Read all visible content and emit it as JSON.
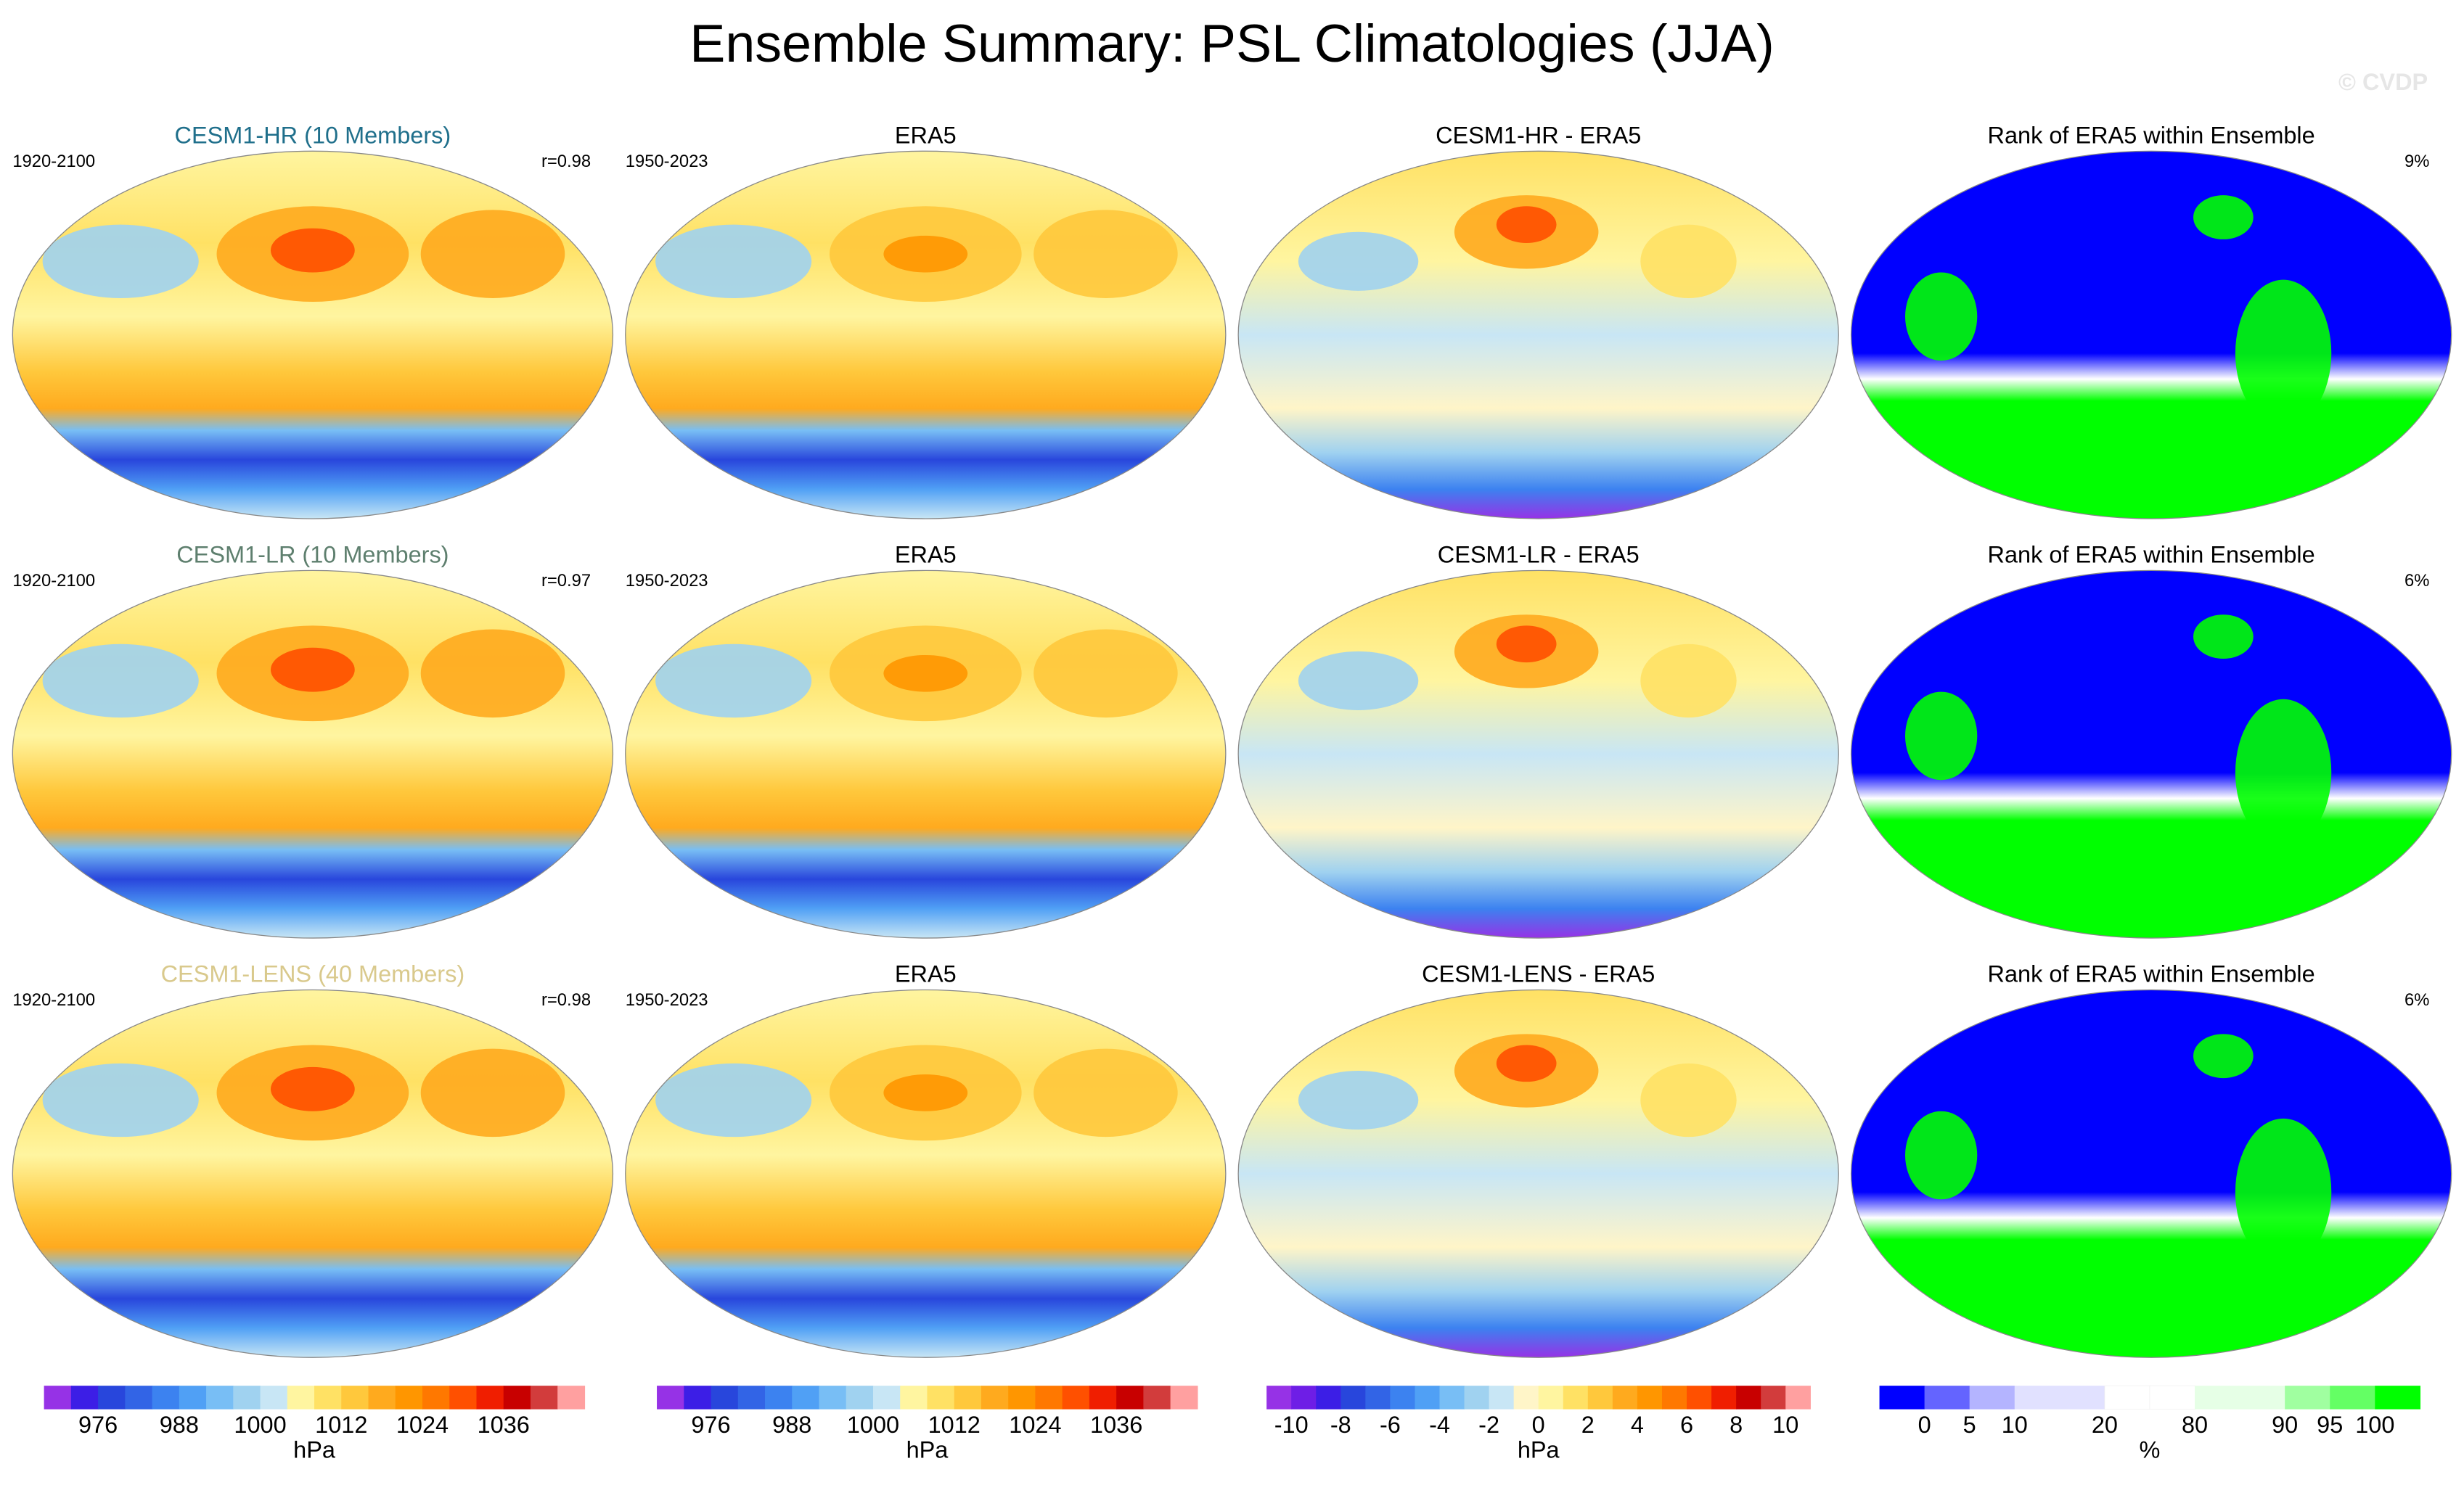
{
  "title": "Ensemble Summary: PSL Climatologies (JJA)",
  "watermark": "© CVDP",
  "rows": [
    {
      "panels": [
        {
          "kind": "model",
          "title": "CESM1-HR (10 Members)",
          "title_color": "#1f6f8b",
          "left": "1920-2100",
          "right": "r=0.98"
        },
        {
          "kind": "obs",
          "title": "ERA5",
          "left": "1950-2023"
        },
        {
          "kind": "diff",
          "title": "CESM1-HR - ERA5"
        },
        {
          "kind": "rank",
          "title": "Rank of ERA5 within Ensemble",
          "right": "9%"
        }
      ]
    },
    {
      "panels": [
        {
          "kind": "model",
          "title": "CESM1-LR (10 Members)",
          "title_color": "#5e7f6e",
          "left": "1920-2100",
          "right": "r=0.97"
        },
        {
          "kind": "obs",
          "title": "ERA5",
          "left": "1950-2023"
        },
        {
          "kind": "diff",
          "title": "CESM1-LR - ERA5"
        },
        {
          "kind": "rank",
          "title": "Rank of ERA5 within Ensemble",
          "right": "6%"
        }
      ]
    },
    {
      "panels": [
        {
          "kind": "model",
          "title": "CESM1-LENS (40 Members)",
          "title_color": "#d9c98c",
          "left": "1920-2100",
          "right": "r=0.98"
        },
        {
          "kind": "obs",
          "title": "ERA5",
          "left": "1950-2023"
        },
        {
          "kind": "diff",
          "title": "CESM1-LENS - ERA5"
        },
        {
          "kind": "rank",
          "title": "Rank of ERA5 within Ensemble",
          "right": "6%"
        }
      ]
    }
  ],
  "colorbars": [
    {
      "unit": "hPa",
      "lim": [
        968,
        1048
      ],
      "ticks": [
        976,
        988,
        1000,
        1012,
        1024,
        1036
      ],
      "colors": [
        "#9632e6",
        "#3c1ee6",
        "#2846dc",
        "#3264e6",
        "#3c82f0",
        "#50a0f5",
        "#78bef5",
        "#a0d2f0",
        "#c8e6f5",
        "#fff5a0",
        "#ffe164",
        "#ffc83c",
        "#ffaa1e",
        "#ff9600",
        "#ff7800",
        "#ff5000",
        "#f01e00",
        "#c80000",
        "#d23c3c",
        "#ffa0a0"
      ]
    },
    {
      "unit": "hPa",
      "lim": [
        968,
        1048
      ],
      "ticks": [
        976,
        988,
        1000,
        1012,
        1024,
        1036
      ],
      "colors": [
        "#9632e6",
        "#3c1ee6",
        "#2846dc",
        "#3264e6",
        "#3c82f0",
        "#50a0f5",
        "#78bef5",
        "#a0d2f0",
        "#c8e6f5",
        "#fff5a0",
        "#ffe164",
        "#ffc83c",
        "#ffaa1e",
        "#ff9600",
        "#ff7800",
        "#ff5000",
        "#f01e00",
        "#c80000",
        "#d23c3c",
        "#ffa0a0"
      ]
    },
    {
      "unit": "hPa",
      "lim": [
        -11,
        11
      ],
      "ticks": [
        -10,
        -8,
        -6,
        -4,
        -2,
        0,
        2,
        4,
        6,
        8,
        10
      ],
      "colors": [
        "#9632e6",
        "#6e1ee6",
        "#3c1ee6",
        "#2846dc",
        "#3264e6",
        "#3c82f0",
        "#50a0f5",
        "#78bef5",
        "#a0d2f0",
        "#c8e6f5",
        "#fff5c8",
        "#fff5a0",
        "#ffe164",
        "#ffc83c",
        "#ffaa1e",
        "#ff9600",
        "#ff7800",
        "#ff5000",
        "#f01e00",
        "#c80000",
        "#d23c3c",
        "#ffa0a0"
      ]
    },
    {
      "unit": "%",
      "ticks": [
        0,
        5,
        10,
        20,
        80,
        90,
        95,
        100
      ],
      "colors": [
        "#0000ff",
        "#6464ff",
        "#b4b4ff",
        "#e1e1ff",
        "#e1e1ff",
        "#ffffff",
        "#ffffff",
        "#e6ffe6",
        "#e6ffe6",
        "#a0ffa0",
        "#64ff64",
        "#00ff00"
      ]
    }
  ]
}
